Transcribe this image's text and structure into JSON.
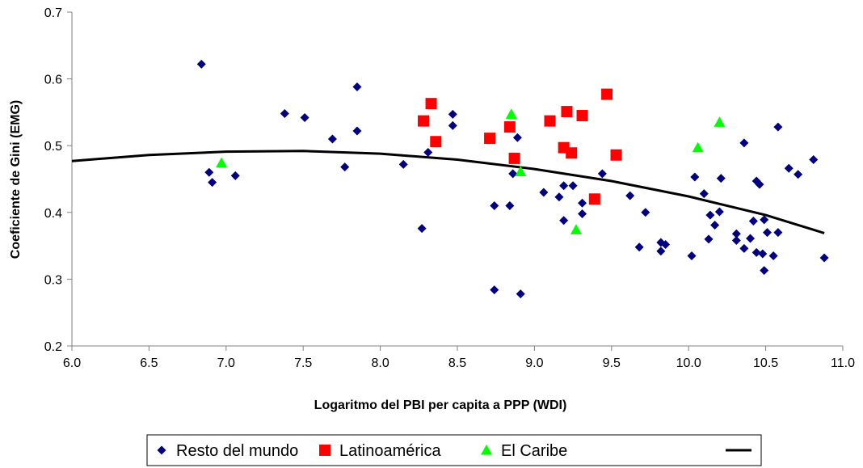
{
  "chart_data": {
    "type": "scatter",
    "xlabel": "Logaritmo del PBI per capita a PPP (WDI)",
    "ylabel": "Coeficiente de Gini (EMG)",
    "xlim": [
      6.0,
      11.0
    ],
    "ylim": [
      0.2,
      0.7
    ],
    "x_ticks": [
      "6.0",
      "6.5",
      "7.0",
      "7.5",
      "8.0",
      "8.5",
      "9.0",
      "9.5",
      "10.0",
      "10.5",
      "11.0"
    ],
    "y_ticks": [
      "0.2",
      "0.3",
      "0.4",
      "0.5",
      "0.6",
      "0.7"
    ],
    "grid": false,
    "legend_position": "bottom",
    "series": [
      {
        "name": "Resto del mundo",
        "marker": "diamond",
        "color": "#000080",
        "points": [
          [
            6.84,
            0.622
          ],
          [
            6.89,
            0.46
          ],
          [
            6.91,
            0.445
          ],
          [
            7.06,
            0.455
          ],
          [
            7.38,
            0.548
          ],
          [
            7.51,
            0.542
          ],
          [
            7.69,
            0.51
          ],
          [
            7.77,
            0.468
          ],
          [
            7.85,
            0.588
          ],
          [
            7.85,
            0.522
          ],
          [
            8.15,
            0.472
          ],
          [
            8.27,
            0.376
          ],
          [
            8.31,
            0.49
          ],
          [
            8.47,
            0.547
          ],
          [
            8.47,
            0.53
          ],
          [
            8.74,
            0.41
          ],
          [
            8.74,
            0.284
          ],
          [
            8.84,
            0.41
          ],
          [
            8.86,
            0.458
          ],
          [
            8.89,
            0.512
          ],
          [
            8.91,
            0.278
          ],
          [
            9.06,
            0.43
          ],
          [
            9.16,
            0.423
          ],
          [
            9.19,
            0.44
          ],
          [
            9.19,
            0.388
          ],
          [
            9.25,
            0.44
          ],
          [
            9.31,
            0.414
          ],
          [
            9.31,
            0.398
          ],
          [
            9.44,
            0.458
          ],
          [
            9.62,
            0.425
          ],
          [
            9.68,
            0.348
          ],
          [
            9.72,
            0.4
          ],
          [
            9.82,
            0.355
          ],
          [
            9.82,
            0.342
          ],
          [
            9.85,
            0.352
          ],
          [
            10.02,
            0.335
          ],
          [
            10.04,
            0.453
          ],
          [
            10.1,
            0.428
          ],
          [
            10.13,
            0.36
          ],
          [
            10.14,
            0.396
          ],
          [
            10.17,
            0.381
          ],
          [
            10.2,
            0.401
          ],
          [
            10.21,
            0.451
          ],
          [
            10.31,
            0.368
          ],
          [
            10.31,
            0.358
          ],
          [
            10.36,
            0.504
          ],
          [
            10.36,
            0.346
          ],
          [
            10.4,
            0.361
          ],
          [
            10.42,
            0.387
          ],
          [
            10.44,
            0.447
          ],
          [
            10.44,
            0.34
          ],
          [
            10.46,
            0.442
          ],
          [
            10.48,
            0.338
          ],
          [
            10.49,
            0.389
          ],
          [
            10.49,
            0.313
          ],
          [
            10.51,
            0.37
          ],
          [
            10.55,
            0.335
          ],
          [
            10.58,
            0.528
          ],
          [
            10.58,
            0.37
          ],
          [
            10.65,
            0.466
          ],
          [
            10.71,
            0.457
          ],
          [
            10.81,
            0.479
          ],
          [
            10.88,
            0.332
          ]
        ]
      },
      {
        "name": "Latinoamérica",
        "marker": "square",
        "color": "#FF0000",
        "points": [
          [
            8.28,
            0.537
          ],
          [
            8.33,
            0.563
          ],
          [
            8.36,
            0.506
          ],
          [
            8.71,
            0.511
          ],
          [
            8.84,
            0.528
          ],
          [
            8.87,
            0.481
          ],
          [
            9.1,
            0.537
          ],
          [
            9.19,
            0.497
          ],
          [
            9.21,
            0.551
          ],
          [
            9.24,
            0.489
          ],
          [
            9.31,
            0.545
          ],
          [
            9.39,
            0.42
          ],
          [
            9.47,
            0.577
          ],
          [
            9.53,
            0.486
          ]
        ]
      },
      {
        "name": "El Caribe",
        "marker": "triangle",
        "color": "#00FF00",
        "points": [
          [
            6.97,
            0.474
          ],
          [
            8.85,
            0.547
          ],
          [
            8.91,
            0.461
          ],
          [
            9.27,
            0.374
          ],
          [
            10.06,
            0.497
          ],
          [
            10.2,
            0.535
          ]
        ]
      },
      {
        "name": "",
        "marker": "line",
        "color": "#000000",
        "curve_points": [
          [
            6.0,
            0.477
          ],
          [
            6.5,
            0.486
          ],
          [
            7.0,
            0.491
          ],
          [
            7.5,
            0.492
          ],
          [
            8.0,
            0.488
          ],
          [
            8.5,
            0.479
          ],
          [
            9.0,
            0.465
          ],
          [
            9.5,
            0.447
          ],
          [
            10.0,
            0.424
          ],
          [
            10.5,
            0.396
          ],
          [
            10.88,
            0.369
          ]
        ]
      }
    ]
  },
  "legend": {
    "items": [
      {
        "label": "Resto del mundo",
        "marker": "diamond",
        "color": "#000080"
      },
      {
        "label": "Latinoamérica",
        "marker": "square",
        "color": "#FF0000"
      },
      {
        "label": "El Caribe",
        "marker": "triangle",
        "color": "#00FF00"
      },
      {
        "label": "",
        "marker": "line",
        "color": "#000000"
      }
    ]
  }
}
